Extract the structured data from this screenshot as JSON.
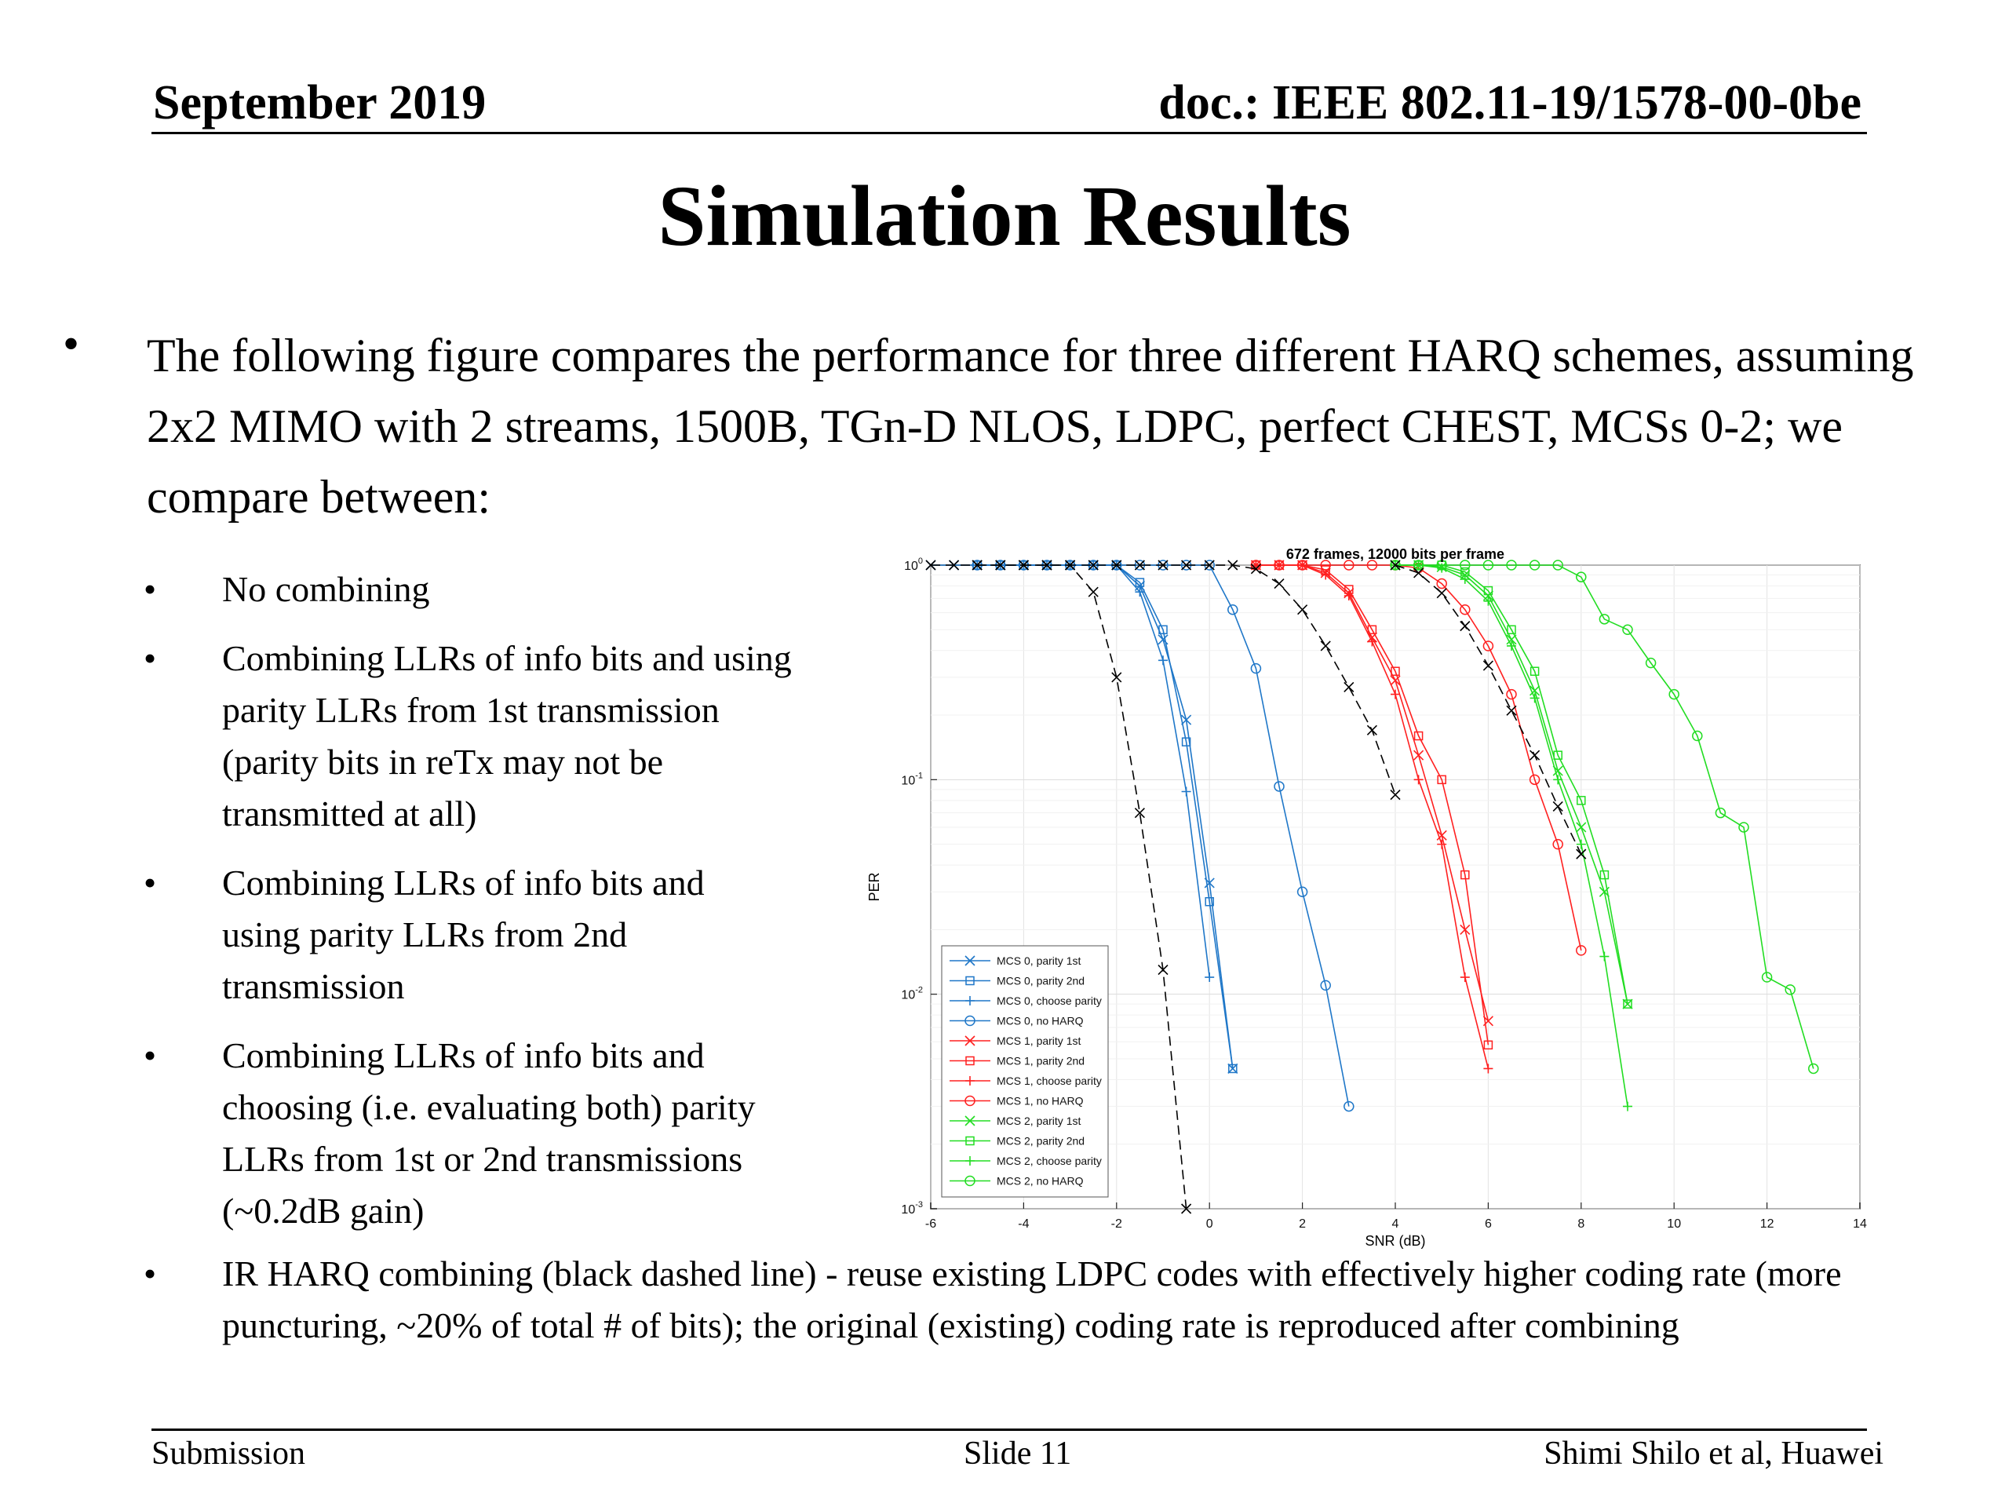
{
  "header": {
    "date": "September 2019",
    "doc": "doc.: IEEE 802.11-19/1578-00-0be"
  },
  "title": "Simulation Results",
  "intro_bullet": "•",
  "intro": "The following figure compares the performance for three different HARQ schemes, assuming 2x2 MIMO with 2 streams, 1500B, TGn-D NLOS, LDPC, perfect CHEST, MCSs 0-2; we compare between:",
  "sub_bullets": [
    "No combining",
    "Combining LLRs of info bits and using parity LLRs from 1st transmission (parity bits in reTx may not be transmitted at all)",
    "Combining LLRs of info bits and using parity LLRs from 2nd transmission",
    "Combining LLRs of info bits and choosing (i.e. evaluating both) parity LLRs from 1st or 2nd transmissions (~0.2dB gain)",
    "IR HARQ combining (black dashed line) - reuse existing LDPC codes with effectively higher coding rate (more puncturing, ~20% of total # of bits); the original (existing) coding rate is reproduced after combining"
  ],
  "footer": {
    "left": "Submission",
    "center": "Slide 11",
    "right": "Shimi Shilo et al, Huawei"
  },
  "chart_data": {
    "type": "line",
    "title": "672 frames, 12000 bits per frame",
    "xlabel": "SNR (dB)",
    "ylabel": "PER",
    "xlim": [
      -6,
      14
    ],
    "ylim": [
      0.001,
      1
    ],
    "yscale": "log",
    "x_ticks": [
      "-6",
      "-4",
      "-2",
      "0",
      "2",
      "4",
      "6",
      "8",
      "10",
      "12",
      "14"
    ],
    "y_ticks": [
      {
        "base": "10",
        "exp": "0"
      },
      {
        "base": "10",
        "exp": "-1"
      },
      {
        "base": "10",
        "exp": "-2"
      },
      {
        "base": "10",
        "exp": "-3"
      }
    ],
    "grid": true,
    "legend_position": "bottom-left",
    "colors": {
      "mcs0": "#1f77c8",
      "mcs1": "#ff2020",
      "mcs2": "#22dd22",
      "ir": "#000000"
    },
    "series": [
      {
        "name": "MCS 0, parity 1st",
        "color": "#1f77c8",
        "marker": "x",
        "x": [
          -6,
          -5.5,
          -5,
          -4.5,
          -4,
          -3.5,
          -3,
          -2.5,
          -2,
          -1.5,
          -1,
          -0.5,
          0,
          0.5
        ],
        "y": [
          1,
          1,
          1,
          1,
          1,
          1,
          1,
          1,
          1,
          0.8,
          0.45,
          0.19,
          0.033,
          0.0045
        ]
      },
      {
        "name": "MCS 0, parity 2nd",
        "color": "#1f77c8",
        "marker": "square",
        "x": [
          -5,
          -4.5,
          -4,
          -3.5,
          -3,
          -2.5,
          -2,
          -1.5,
          -1,
          -0.5,
          0,
          0.5
        ],
        "y": [
          1,
          1,
          1,
          1,
          1,
          1,
          1,
          0.83,
          0.5,
          0.15,
          0.027,
          0.0045
        ]
      },
      {
        "name": "MCS 0, choose parity",
        "color": "#1f77c8",
        "marker": "plus",
        "x": [
          -5,
          -4.5,
          -4,
          -3.5,
          -3,
          -2.5,
          -2,
          -1.5,
          -1,
          -0.5,
          0
        ],
        "y": [
          1,
          1,
          1,
          1,
          1,
          1,
          1,
          0.75,
          0.36,
          0.088,
          0.012
        ]
      },
      {
        "name": "MCS 0, no HARQ",
        "color": "#1f77c8",
        "marker": "circle",
        "x": [
          -5,
          -4.5,
          -4,
          -3.5,
          -3,
          -2.5,
          -2,
          -1.5,
          -1,
          -0.5,
          0,
          0.5,
          1,
          1.5,
          2,
          2.5,
          3
        ],
        "y": [
          1,
          1,
          1,
          1,
          1,
          1,
          1,
          1,
          1,
          1,
          1,
          0.62,
          0.33,
          0.093,
          0.03,
          0.011,
          0.003
        ]
      },
      {
        "name": "MCS 1, parity 1st",
        "color": "#ff2020",
        "marker": "x",
        "x": [
          1,
          1.5,
          2,
          2.5,
          3,
          3.5,
          4,
          4.5,
          5,
          5.5,
          6
        ],
        "y": [
          1,
          1,
          1,
          0.92,
          0.74,
          0.46,
          0.29,
          0.13,
          0.055,
          0.02,
          0.0075
        ]
      },
      {
        "name": "MCS 1, parity 2nd",
        "color": "#ff2020",
        "marker": "square",
        "x": [
          1,
          1.5,
          2,
          2.5,
          3,
          3.5,
          4,
          4.5,
          5,
          5.5,
          6
        ],
        "y": [
          1,
          1,
          1,
          0.95,
          0.77,
          0.5,
          0.32,
          0.16,
          0.1,
          0.036,
          0.0058
        ]
      },
      {
        "name": "MCS 1, choose parity",
        "color": "#ff2020",
        "marker": "plus",
        "x": [
          1,
          1.5,
          2,
          2.5,
          3,
          3.5,
          4,
          4.5,
          5,
          5.5,
          6
        ],
        "y": [
          1,
          1,
          1,
          0.9,
          0.72,
          0.44,
          0.25,
          0.1,
          0.05,
          0.012,
          0.0045
        ]
      },
      {
        "name": "MCS 1, no HARQ",
        "color": "#ff2020",
        "marker": "circle",
        "x": [
          1,
          1.5,
          2,
          2.5,
          3,
          3.5,
          4,
          4.5,
          5,
          5.5,
          6,
          6.5,
          7,
          7.5,
          8
        ],
        "y": [
          1,
          1,
          1,
          1,
          1,
          1,
          1,
          0.97,
          0.82,
          0.62,
          0.42,
          0.25,
          0.1,
          0.05,
          0.016
        ]
      },
      {
        "name": "MCS 2, parity 1st",
        "color": "#22dd22",
        "marker": "x",
        "x": [
          4,
          4.5,
          5,
          5.5,
          6,
          6.5,
          7,
          7.5,
          8,
          8.5,
          9
        ],
        "y": [
          1,
          1,
          0.98,
          0.9,
          0.72,
          0.45,
          0.26,
          0.11,
          0.06,
          0.03,
          0.009
        ]
      },
      {
        "name": "MCS 2, parity 2nd",
        "color": "#22dd22",
        "marker": "square",
        "x": [
          4,
          4.5,
          5,
          5.5,
          6,
          6.5,
          7,
          7.5,
          8,
          8.5,
          9
        ],
        "y": [
          1,
          1,
          1,
          0.93,
          0.76,
          0.5,
          0.32,
          0.13,
          0.08,
          0.036,
          0.009
        ]
      },
      {
        "name": "MCS 2, choose parity",
        "color": "#22dd22",
        "marker": "plus",
        "x": [
          4,
          4.5,
          5,
          5.5,
          6,
          6.5,
          7,
          7.5,
          8,
          8.5,
          9
        ],
        "y": [
          1,
          1,
          0.97,
          0.86,
          0.68,
          0.42,
          0.24,
          0.1,
          0.05,
          0.015,
          0.003
        ]
      },
      {
        "name": "MCS 2, no HARQ",
        "color": "#22dd22",
        "marker": "circle",
        "x": [
          4,
          4.5,
          5,
          5.5,
          6,
          6.5,
          7,
          7.5,
          8,
          8.5,
          9,
          9.5,
          10,
          10.5,
          11,
          11.5,
          12,
          12.5,
          13
        ],
        "y": [
          1,
          1,
          1,
          1,
          1,
          1,
          1,
          1,
          0.88,
          0.56,
          0.5,
          0.35,
          0.25,
          0.16,
          0.07,
          0.06,
          0.012,
          0.0105,
          0.0045
        ]
      },
      {
        "name": "",
        "color": "#000000",
        "marker": "x",
        "dashed": true,
        "x": [
          -6,
          -5.5,
          -5,
          -4.5,
          -4,
          -3.5,
          -3,
          -2.5,
          -2,
          -1.5,
          -1,
          -0.5
        ],
        "y": [
          1,
          1,
          1,
          1,
          1,
          1,
          1,
          0.75,
          0.3,
          0.07,
          0.013,
          0.001
        ]
      },
      {
        "name": "",
        "color": "#000000",
        "marker": "x",
        "dashed": true,
        "x": [
          -5,
          -4.5,
          -4,
          -3.5,
          -3,
          -2.5,
          -2,
          -1.5,
          -1,
          -0.5,
          0,
          0.5,
          1,
          1.5,
          2,
          2.5,
          3,
          3.5,
          4
        ],
        "y": [
          1,
          1,
          1,
          1,
          1,
          1,
          1,
          1,
          1,
          1,
          1,
          1,
          0.96,
          0.82,
          0.62,
          0.42,
          0.27,
          0.17,
          0.085
        ]
      },
      {
        "name": "",
        "color": "#000000",
        "marker": "x",
        "dashed": true,
        "x": [
          4,
          4.5,
          5,
          5.5,
          6,
          6.5,
          7,
          7.5,
          8
        ],
        "y": [
          1,
          0.92,
          0.74,
          0.52,
          0.34,
          0.21,
          0.13,
          0.075,
          0.045
        ]
      }
    ]
  }
}
